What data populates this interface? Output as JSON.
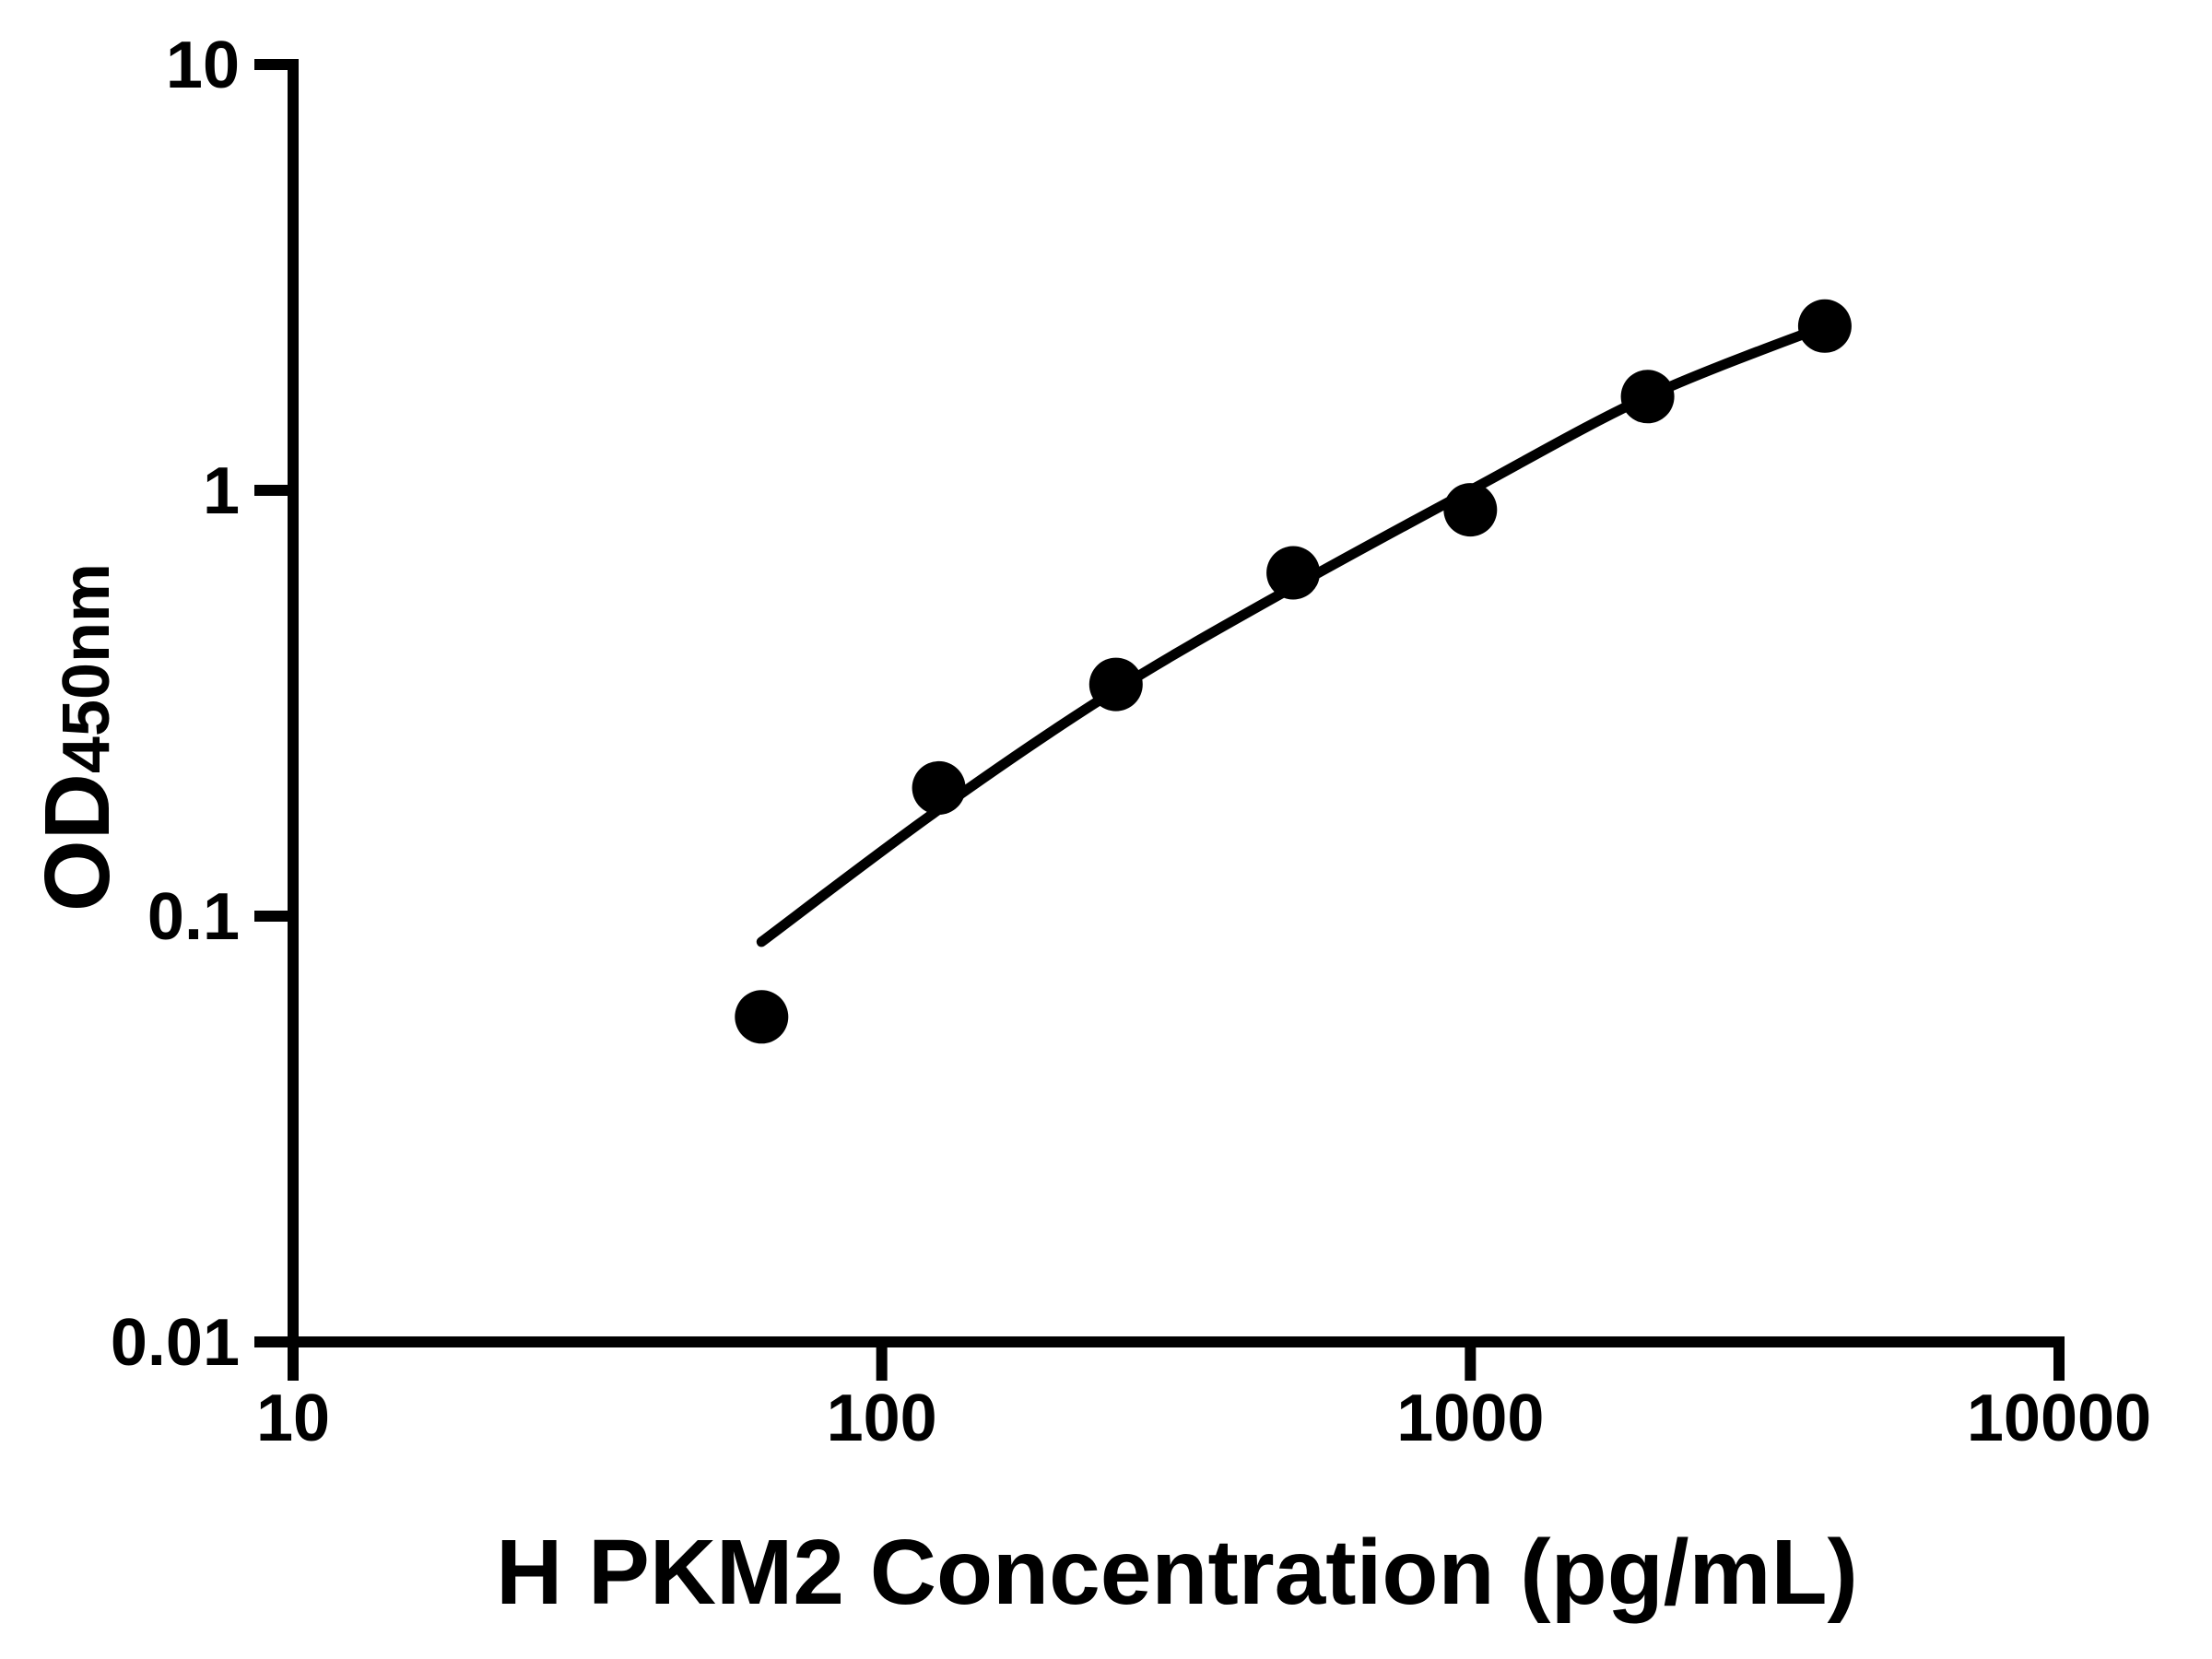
{
  "figure": {
    "background": "#ffffff",
    "foreground": "#000000"
  },
  "chart_data": {
    "type": "scatter",
    "title": "",
    "xlabel": "H PKM2 Concentration (pg/mL)",
    "ylabel": "OD450nm",
    "ylabel_main": "OD",
    "ylabel_subscript": "450nm",
    "x_scale": "log10",
    "y_scale": "log10",
    "xlim": [
      10,
      10000
    ],
    "ylim": [
      0.01,
      10
    ],
    "grid": false,
    "legend": false,
    "marker_color": "#000000",
    "line_color": "#000000",
    "axis_color": "#000000",
    "x_ticks": [
      {
        "label": "10",
        "value": 10
      },
      {
        "label": "100",
        "value": 100
      },
      {
        "label": "1000",
        "value": 1000
      },
      {
        "label": "10000",
        "value": 10000
      }
    ],
    "y_ticks": [
      {
        "label": "10",
        "value": 10
      },
      {
        "label": "1",
        "value": 1
      },
      {
        "label": "0.1",
        "value": 0.1
      },
      {
        "label": "0.01",
        "value": 0.01
      }
    ],
    "points": [
      {
        "x": 62.5,
        "od": 0.058
      },
      {
        "x": 125,
        "od": 0.2
      },
      {
        "x": 250,
        "od": 0.35
      },
      {
        "x": 500,
        "od": 0.64
      },
      {
        "x": 1000,
        "od": 0.9
      },
      {
        "x": 2000,
        "od": 1.66
      },
      {
        "x": 4000,
        "od": 2.43
      }
    ],
    "fit_curve": [
      {
        "x": 62.5,
        "od": 0.087
      },
      {
        "x": 125,
        "od": 0.178
      },
      {
        "x": 250,
        "od": 0.34
      },
      {
        "x": 500,
        "od": 0.593
      },
      {
        "x": 1000,
        "od": 1.0
      },
      {
        "x": 2000,
        "od": 1.66
      },
      {
        "x": 4000,
        "od": 2.43
      }
    ]
  }
}
